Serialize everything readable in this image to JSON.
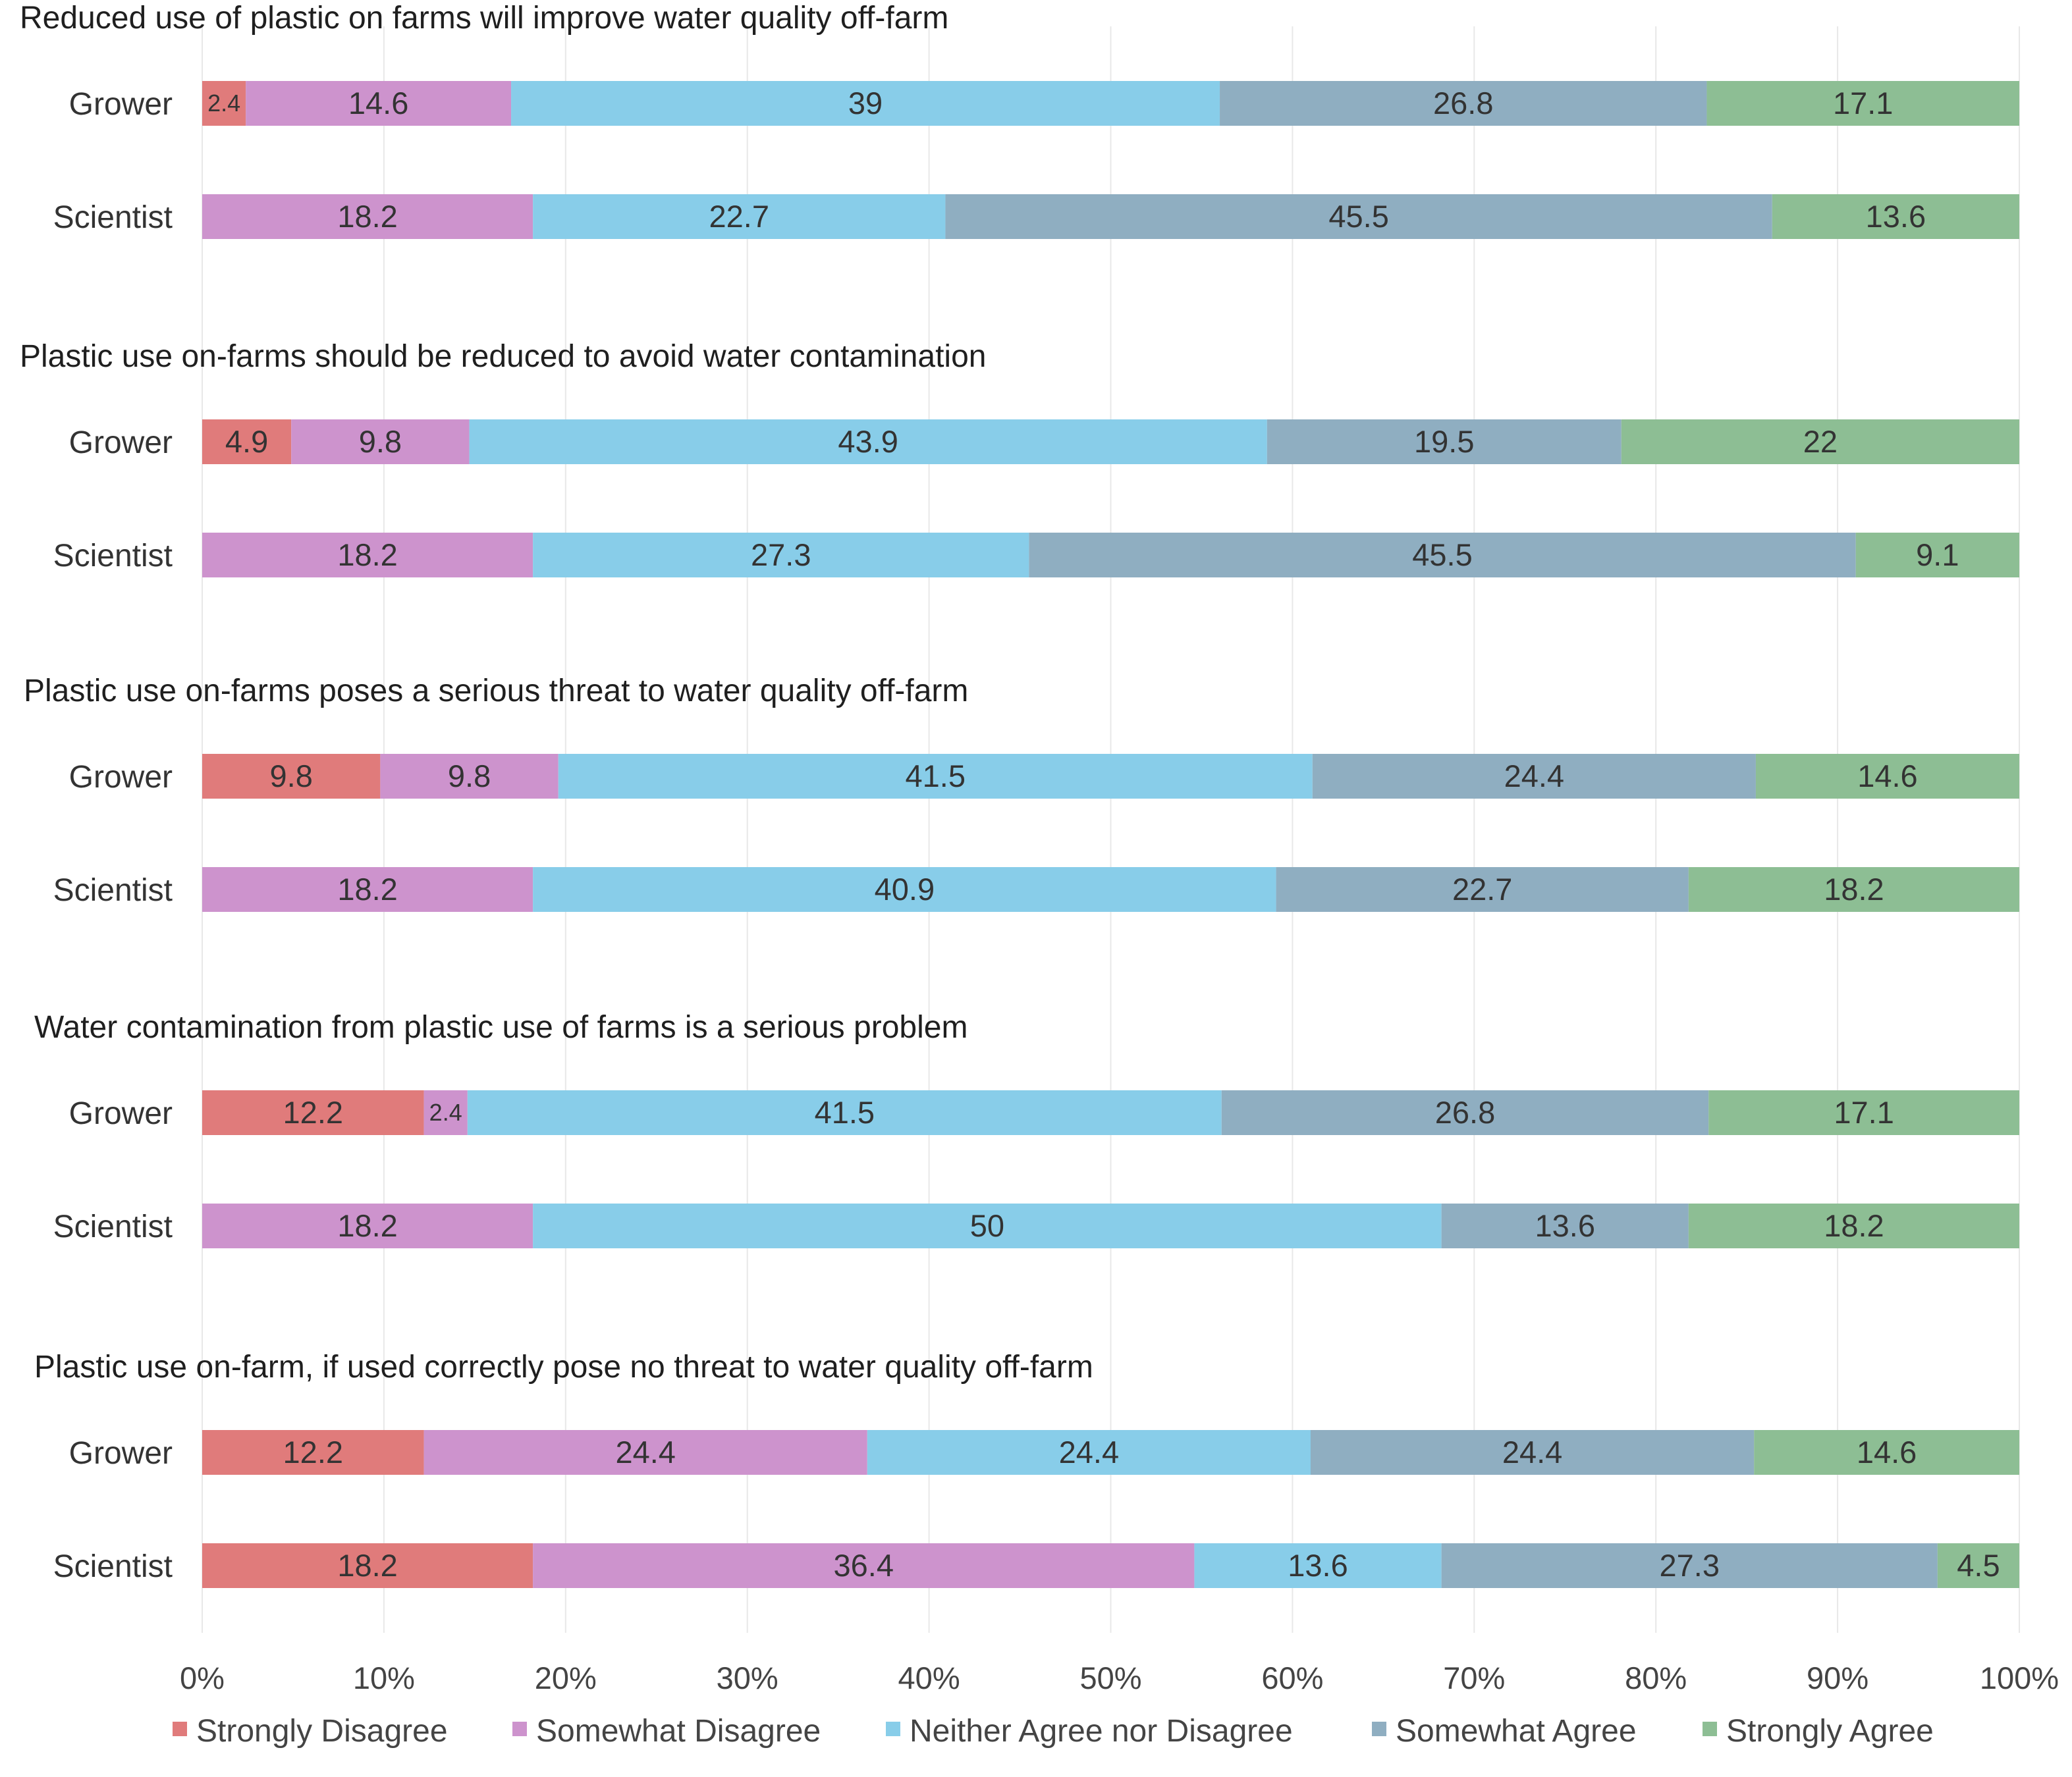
{
  "chart_data": {
    "type": "bar",
    "orientation": "horizontal",
    "stacked": true,
    "percent": true,
    "title": "",
    "xlabel": "",
    "ylabel": "",
    "xlim": [
      0,
      100
    ],
    "x_ticks": [
      "0%",
      "10%",
      "20%",
      "30%",
      "40%",
      "50%",
      "60%",
      "70%",
      "80%",
      "90%",
      "100%"
    ],
    "grid": true,
    "legend_position": "bottom",
    "series": [
      {
        "name": "Strongly Disagree",
        "color": "#E07B7B"
      },
      {
        "name": "Somewhat Disagree",
        "color": "#CD93CD"
      },
      {
        "name": "Neither Agree nor Disagree",
        "color": "#88CDE9"
      },
      {
        "name": "Somewhat Agree",
        "color": "#8FAEC1"
      },
      {
        "name": "Strongly Agree",
        "color": "#8DBE94"
      }
    ],
    "panels": [
      {
        "title": "Reduced use of plastic on farms will improve water quality off-farm",
        "rows": [
          {
            "label": "Grower",
            "values": [
              2.4,
              14.6,
              39,
              26.8,
              17.1
            ]
          },
          {
            "label": "Scientist",
            "values": [
              0,
              18.2,
              22.7,
              45.5,
              13.6
            ]
          }
        ]
      },
      {
        "title": "Plastic use on-farms should be reduced to avoid water contamination",
        "rows": [
          {
            "label": "Grower",
            "values": [
              4.9,
              9.8,
              43.9,
              19.5,
              22
            ]
          },
          {
            "label": "Scientist",
            "values": [
              0,
              18.2,
              27.3,
              45.5,
              9.1
            ]
          }
        ]
      },
      {
        "title": "Plastic use on-farms poses a serious threat to water quality off-farm",
        "rows": [
          {
            "label": "Grower",
            "values": [
              9.8,
              9.8,
              41.5,
              24.4,
              14.6
            ]
          },
          {
            "label": "Scientist",
            "values": [
              0,
              18.2,
              40.9,
              22.7,
              18.2
            ]
          }
        ]
      },
      {
        "title": "Water contamination from plastic use of farms is a serious problem",
        "rows": [
          {
            "label": "Grower",
            "values": [
              12.2,
              2.4,
              41.5,
              26.8,
              17.1
            ]
          },
          {
            "label": "Scientist",
            "values": [
              0,
              18.2,
              50,
              13.6,
              18.2
            ]
          }
        ]
      },
      {
        "title": "Plastic use on-farm, if used correctly pose no threat to water quality off-farm",
        "rows": [
          {
            "label": "Grower",
            "values": [
              12.2,
              24.4,
              24.4,
              24.4,
              14.6
            ]
          },
          {
            "label": "Scientist",
            "values": [
              18.2,
              36.4,
              13.6,
              27.3,
              4.5
            ]
          }
        ]
      }
    ]
  }
}
